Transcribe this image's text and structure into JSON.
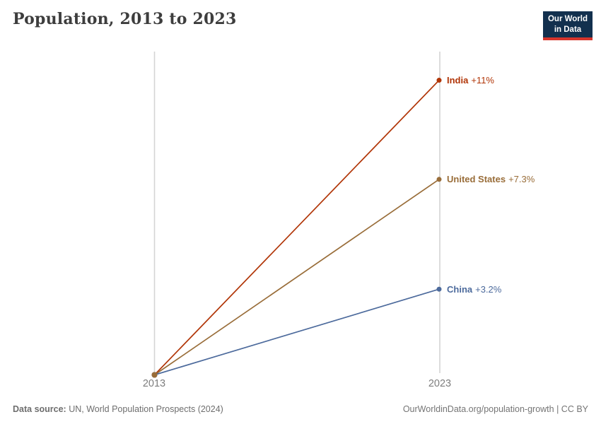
{
  "header": {
    "title": "Population, 2013 to 2023"
  },
  "logo": {
    "line1": "Our World",
    "line2": "in Data",
    "bg_color": "#12304e",
    "accent_color": "#d7352c"
  },
  "chart_data": {
    "type": "line",
    "title": "Population, 2013 to 2023",
    "x": [
      2013,
      2023
    ],
    "x_tick_labels": [
      "2013",
      "2023"
    ],
    "ylabel": "",
    "xlabel": "",
    "ylim_pct": [
      0,
      12.07
    ],
    "grid": "two vertical year axis lines",
    "legend_position": "right-of-line-endpoints",
    "axis_color": "#d4d4d4",
    "tick_label_color": "#7d7d7d",
    "series": [
      {
        "name": "India",
        "change_label": "+11%",
        "color": "#b13507",
        "values_pct": [
          0,
          11
        ]
      },
      {
        "name": "United States",
        "change_label": "+7.3%",
        "color": "#996d39",
        "values_pct": [
          0,
          7.3
        ]
      },
      {
        "name": "China",
        "change_label": "+3.2%",
        "color": "#4c6a9c",
        "values_pct": [
          0,
          3.2
        ]
      }
    ]
  },
  "footer": {
    "source_label": "Data source:",
    "source_text": " UN, World Population Prospects (2024)",
    "credit": "OurWorldinData.org/population-growth | CC BY"
  }
}
